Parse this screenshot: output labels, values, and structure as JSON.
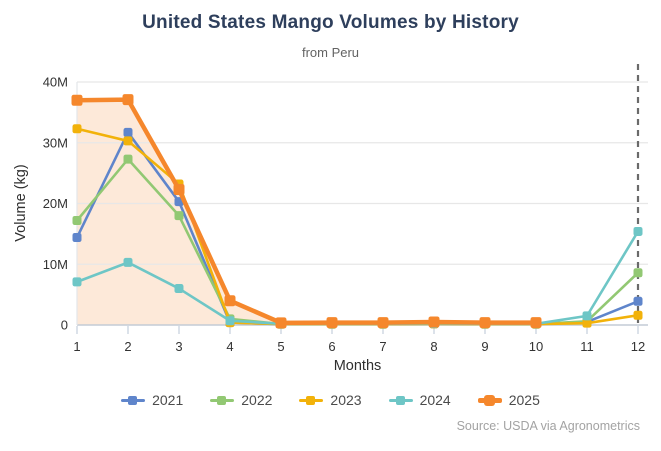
{
  "header": {
    "title": "United States Mango Volumes by History",
    "subtitle": "from Peru"
  },
  "chart_data": {
    "type": "line",
    "title": "United States Mango Volumes by History",
    "subtitle": "from Peru",
    "xlabel": "Months",
    "ylabel": "Volume (kg)",
    "x": [
      1,
      2,
      3,
      4,
      5,
      6,
      7,
      8,
      9,
      10,
      11,
      12
    ],
    "y_ticks": {
      "values_millions": [
        0,
        10,
        20,
        30,
        40
      ],
      "labels": [
        "0",
        "10M",
        "20M",
        "30M",
        "40M"
      ]
    },
    "ylim_millions": [
      0,
      40
    ],
    "grid": "horizontal",
    "legend_position": "bottom",
    "annotations": [
      {
        "type": "vline",
        "x": 12,
        "style": "dashed",
        "color": "#6a6a6a"
      }
    ],
    "series": [
      {
        "name": "2021",
        "color": "#5f85cb",
        "values_millions": [
          14.4,
          31.7,
          20.3,
          0.4,
          0.15,
          0.15,
          0.15,
          0.2,
          0.15,
          0.15,
          0.5,
          3.9
        ]
      },
      {
        "name": "2022",
        "color": "#92c873",
        "values_millions": [
          17.2,
          27.3,
          18.0,
          1.0,
          0.15,
          0.15,
          0.15,
          0.2,
          0.15,
          0.15,
          0.6,
          8.6
        ]
      },
      {
        "name": "2023",
        "color": "#f2b20a",
        "values_millions": [
          32.3,
          30.3,
          23.2,
          0.4,
          0.15,
          0.15,
          0.15,
          0.2,
          0.15,
          0.15,
          0.3,
          1.6
        ]
      },
      {
        "name": "2024",
        "color": "#6ec6c6",
        "values_millions": [
          7.1,
          10.3,
          6.0,
          0.7,
          0.2,
          0.2,
          0.2,
          0.25,
          0.2,
          0.2,
          1.5,
          15.4
        ]
      },
      {
        "name": "2025",
        "color": "#f5872c",
        "values_millions": [
          37.0,
          37.1,
          22.3,
          4.0,
          0.35,
          0.4,
          0.4,
          0.5,
          0.4,
          0.4
        ],
        "area_fill": true,
        "area_opacity": 0.18,
        "thick": true
      }
    ]
  },
  "colors": {
    "title": "#2e3f5c",
    "gridline": "#e7e7e7",
    "zero_axis": "#c3ccd6",
    "tick_mark": "#ccd6e0",
    "dashed_line": "#6a6a6a"
  },
  "source": {
    "text": "Source: USDA via Agronometrics"
  }
}
